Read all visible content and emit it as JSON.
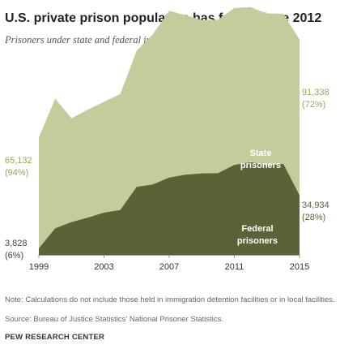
{
  "header": {
    "title": "U.S. private prison population has fallen since 2012",
    "subtitle": "Prisoners under state and federal jurisdiction held in private prisons"
  },
  "chart_data": {
    "type": "area",
    "stacked": true,
    "x": [
      1999,
      2000,
      2001,
      2002,
      2003,
      2004,
      2005,
      2006,
      2007,
      2008,
      2009,
      2010,
      2011,
      2012,
      2013,
      2014,
      2015
    ],
    "xticks": [
      "1999",
      "2003",
      "2007",
      "2011",
      "2015"
    ],
    "xtick_values": [
      1999,
      2003,
      2007,
      2011,
      2015
    ],
    "ylim": [
      0,
      140000
    ],
    "grid": false,
    "series": [
      {
        "name": "Federal prisoners",
        "color": "#5c6237",
        "values": [
          3828,
          15524,
          19251,
          21865,
          24768,
          26321,
          39834,
          41279,
          45355,
          47061,
          47829,
          47884,
          52802,
          54355,
          52612,
          53472,
          34934
        ]
      },
      {
        "name": "State prisoners",
        "color": "#c5cc9c",
        "values": [
          65132,
          76132,
          60875,
          63324,
          65058,
          68007,
          79930,
          88234,
          97867,
          93500,
          90000,
          90000,
          92000,
          91000,
          89000,
          88000,
          91338
        ]
      }
    ],
    "annotations": {
      "start_total_value": "65,132",
      "start_total_pct": "(94%)",
      "start_federal_value": "3,828",
      "start_federal_pct": "(6%)",
      "end_state_value": "91,338",
      "end_state_pct": "(72%)",
      "end_federal_value": "34,934",
      "end_federal_pct": "(28%)",
      "state_label_line1": "State",
      "state_label_line2": "prisoners",
      "federal_label_line1": "Federal",
      "federal_label_line2": "prisoners"
    }
  },
  "notes": {
    "note": "Note: Calculations do not include those held in immigration detention facilities or in local facilities.",
    "source": "Source: Bureau of Justice Statistics' National Prisoner Statistics.",
    "credit": "PEW RESEARCH CENTER"
  },
  "colors": {
    "state": "#c5cc9c",
    "federal": "#5c6237",
    "state_text": "#9ca35c",
    "federal_text": "#5c6237",
    "axis": "#999999"
  }
}
